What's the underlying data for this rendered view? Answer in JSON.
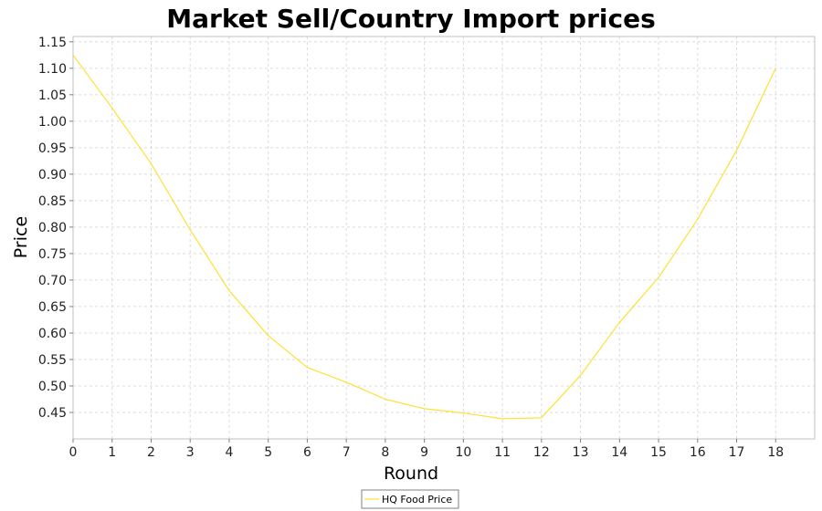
{
  "chart_data": {
    "type": "line",
    "title": "Market Sell/Country Import prices",
    "xlabel": "Round",
    "ylabel": "Price",
    "xlim": [
      0,
      19
    ],
    "ylim": [
      0.4,
      1.16
    ],
    "x_ticks": [
      0,
      1,
      2,
      3,
      4,
      5,
      6,
      7,
      8,
      9,
      10,
      11,
      12,
      13,
      14,
      15,
      16,
      17,
      18
    ],
    "x_tick_labels": [
      "0",
      "1",
      "2",
      "3",
      "4",
      "5",
      "6",
      "7",
      "8",
      "9",
      "10",
      "11",
      "12",
      "13",
      "14",
      "15",
      "16",
      "17",
      "18"
    ],
    "y_ticks": [
      0.45,
      0.5,
      0.55,
      0.6,
      0.65,
      0.7,
      0.75,
      0.8,
      0.85,
      0.9,
      0.95,
      1.0,
      1.05,
      1.1,
      1.15
    ],
    "y_tick_labels": [
      "0.45",
      "0.50",
      "0.55",
      "0.60",
      "0.65",
      "0.70",
      "0.75",
      "0.80",
      "0.85",
      "0.90",
      "0.95",
      "1.00",
      "1.05",
      "1.10",
      "1.15"
    ],
    "grid": true,
    "legend_position": "bottom-center",
    "series": [
      {
        "name": "HQ Food Price",
        "color": "#ffe033",
        "x": [
          0,
          1,
          2,
          3,
          4,
          5,
          6,
          7,
          8,
          9,
          10,
          11,
          12,
          13,
          14,
          15,
          16,
          17,
          18
        ],
        "values": [
          1.125,
          1.025,
          0.92,
          0.795,
          0.68,
          0.595,
          0.535,
          0.507,
          0.475,
          0.457,
          0.449,
          0.438,
          0.44,
          0.52,
          0.62,
          0.705,
          0.815,
          0.945,
          1.1
        ]
      }
    ]
  }
}
